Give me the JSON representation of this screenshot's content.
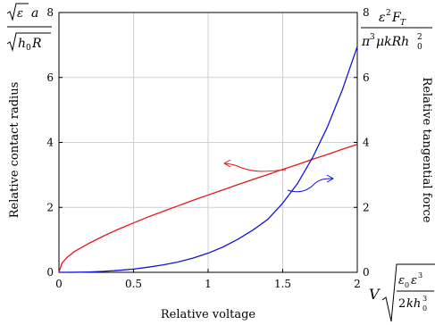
{
  "chart_data": {
    "type": "line",
    "xlabel": "Relative voltage",
    "ylabel_left": "Relative contact radius",
    "ylabel_right": "Relative tangential force",
    "xlim": [
      0,
      2
    ],
    "ylim_left": [
      0,
      8
    ],
    "ylim_right": [
      0,
      8
    ],
    "x_ticks": [
      "0",
      "0.5",
      "1",
      "1.5",
      "2"
    ],
    "y_ticks_left": [
      "0",
      "2",
      "4",
      "6",
      "8"
    ],
    "y_ticks_right": [
      "0",
      "2",
      "4",
      "6",
      "8"
    ],
    "grid": true,
    "series": [
      {
        "axis": "left",
        "color": "#e8141c",
        "x": [
          0,
          0.02,
          0.05,
          0.1,
          0.2,
          0.3,
          0.4,
          0.5,
          0.6,
          0.7,
          0.8,
          0.9,
          1.0,
          1.1,
          1.2,
          1.3,
          1.4,
          1.5,
          1.6,
          1.7,
          1.8,
          1.9,
          2.0
        ],
        "y": [
          0,
          0.28,
          0.44,
          0.63,
          0.89,
          1.12,
          1.33,
          1.52,
          1.71,
          1.88,
          2.05,
          2.22,
          2.38,
          2.54,
          2.7,
          2.86,
          3.01,
          3.17,
          3.32,
          3.48,
          3.63,
          3.79,
          3.94
        ]
      },
      {
        "axis": "right",
        "color": "#1515d6",
        "x": [
          0,
          0.1,
          0.2,
          0.3,
          0.4,
          0.5,
          0.6,
          0.7,
          0.8,
          0.9,
          1.0,
          1.1,
          1.2,
          1.3,
          1.4,
          1.5,
          1.6,
          1.7,
          1.8,
          1.9,
          2.0
        ],
        "y": [
          0,
          0.002,
          0.011,
          0.03,
          0.06,
          0.1,
          0.16,
          0.23,
          0.32,
          0.44,
          0.59,
          0.78,
          1.02,
          1.3,
          1.63,
          2.13,
          2.74,
          3.53,
          4.48,
          5.62,
          6.95
        ]
      }
    ],
    "annotations": {
      "left_axis_top": "√εa / √(h₀R)",
      "right_axis_top": "ε²F_T / (π³μkRh₀²)",
      "x_axis_end": "V √(ε₀ε³ / (2kh₀³))"
    }
  }
}
